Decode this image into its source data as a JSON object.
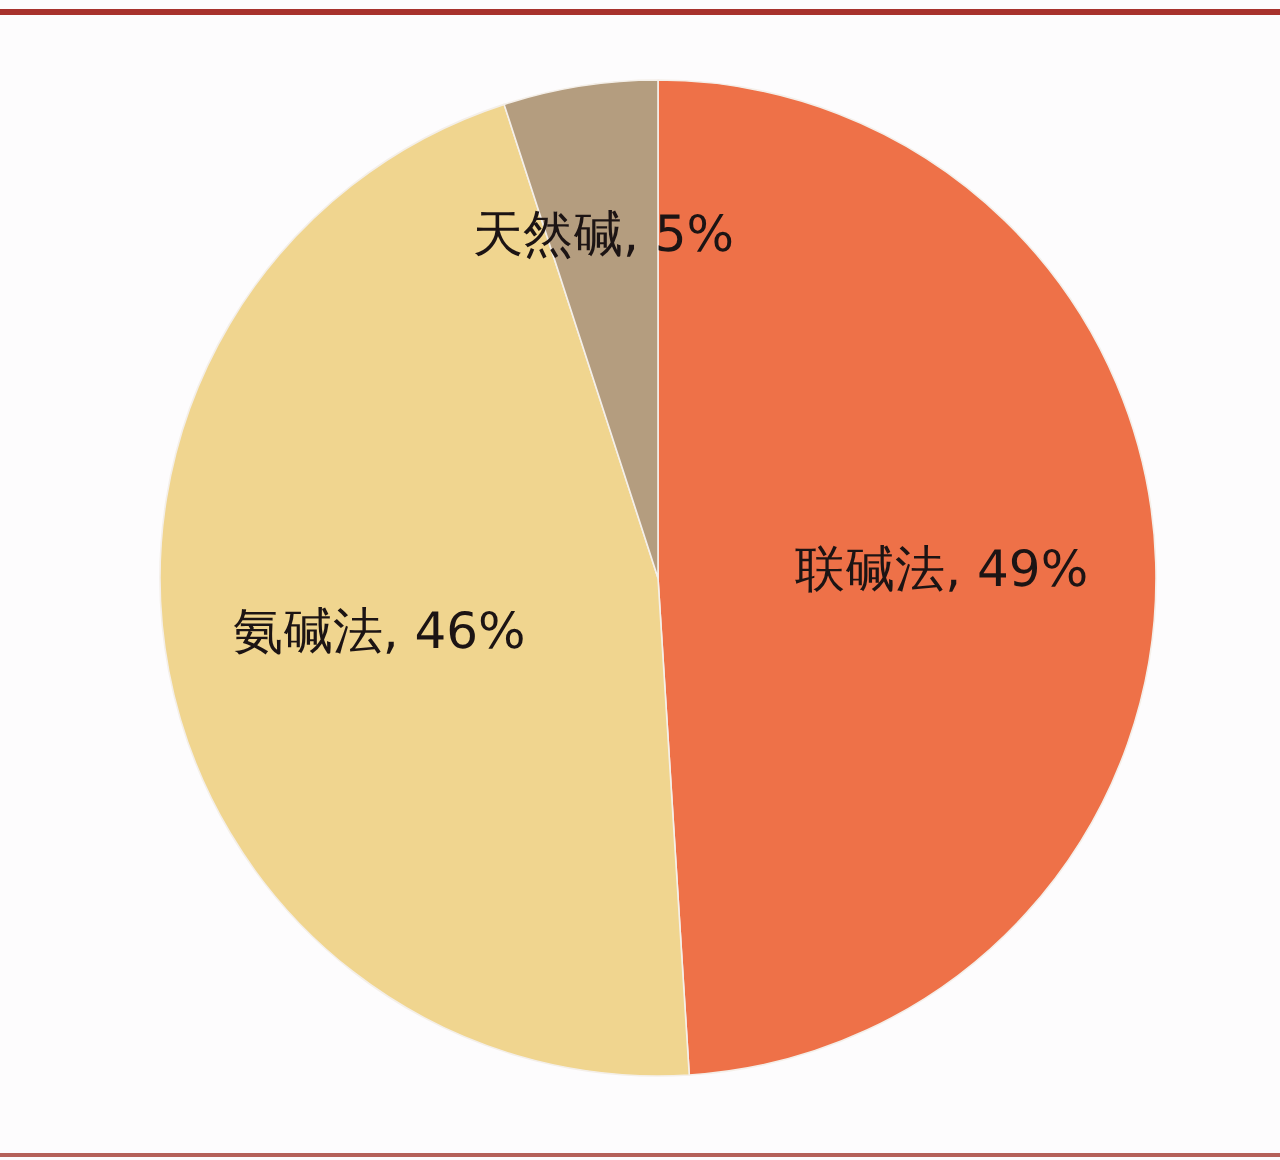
{
  "chart_data": {
    "type": "pie",
    "categories": [
      "联碱法",
      "氨碱法",
      "天然碱"
    ],
    "values": [
      49,
      46,
      5
    ],
    "colors": [
      "#ee7148",
      "#f0d58f",
      "#b49d7f"
    ],
    "value_labels": [
      "49%",
      "46%",
      "5%"
    ]
  }
}
